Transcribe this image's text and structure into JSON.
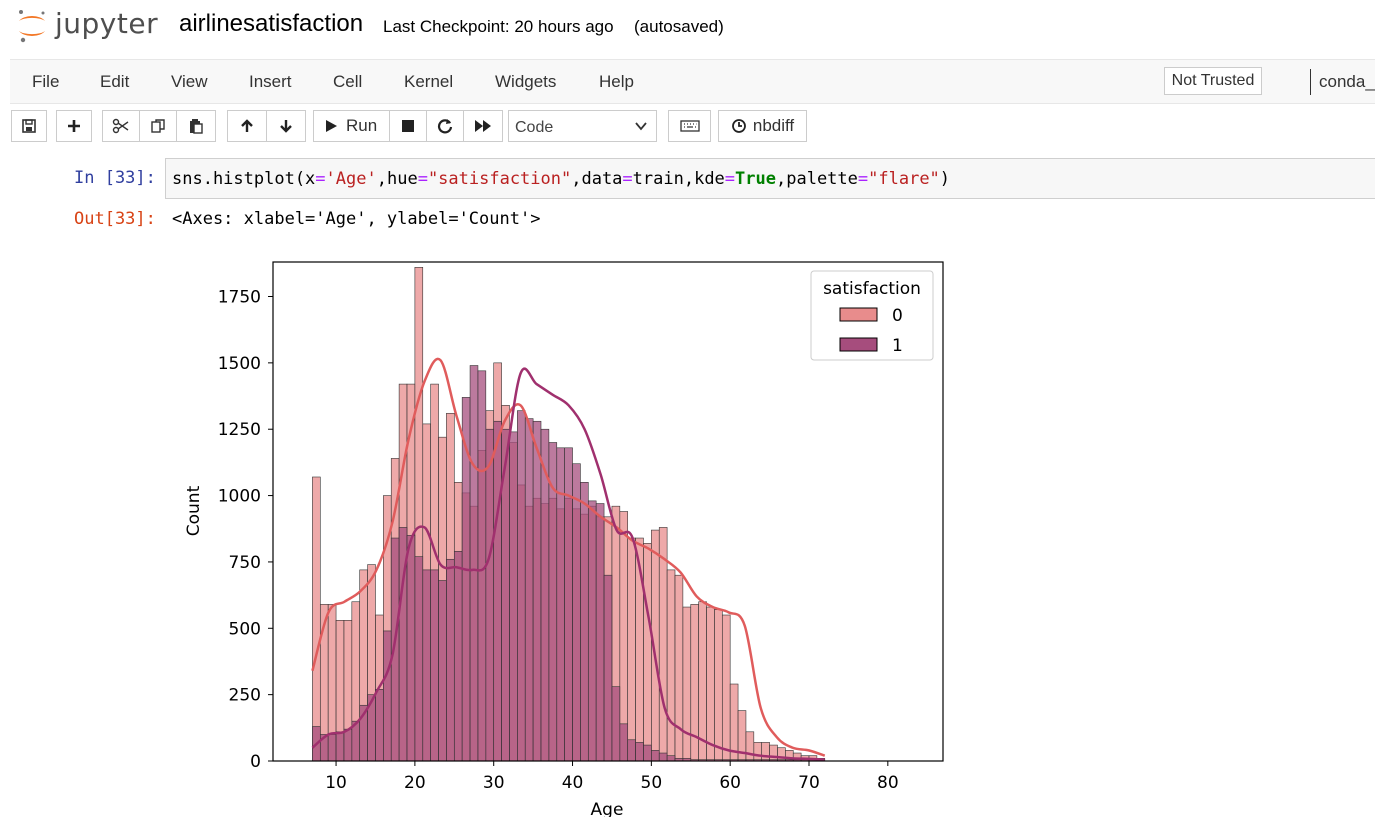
{
  "header": {
    "brand": "jupyter",
    "notebook_name": "airlinesatisfaction",
    "checkpoint": "Last Checkpoint: 20 hours ago",
    "autosave": "(autosaved)"
  },
  "menu": {
    "items": [
      "File",
      "Edit",
      "View",
      "Insert",
      "Cell",
      "Kernel",
      "Widgets",
      "Help"
    ],
    "trust": "Not Trusted",
    "kernel": "conda_"
  },
  "toolbar": {
    "run_label": "Run",
    "cell_type": "Code",
    "nbdiff_label": "nbdiff"
  },
  "cell": {
    "in_prompt": "In [33]:",
    "out_prompt": "Out[33]:",
    "output_text": "<Axes: xlabel='Age', ylabel='Count'>"
  },
  "colors": {
    "hue0": "#e88c8c",
    "hue1": "#a64d7d",
    "kde0": "#e05c5c",
    "kde1": "#a0306e"
  },
  "chart_data": {
    "type": "histogram",
    "xlabel": "Age",
    "ylabel": "Count",
    "xlim": [
      2,
      87
    ],
    "ylim": [
      0,
      1880
    ],
    "xticks": [
      10,
      20,
      30,
      40,
      50,
      60,
      70,
      80
    ],
    "yticks": [
      0,
      250,
      500,
      750,
      1000,
      1250,
      1500,
      1750
    ],
    "legend": {
      "title": "satisfaction",
      "entries": [
        "0",
        "1"
      ],
      "position": "top-right"
    },
    "bins_start": 7,
    "bin_width": 1,
    "series": [
      {
        "name": "0",
        "values": [
          1070,
          590,
          590,
          530,
          530,
          600,
          720,
          740,
          550,
          1000,
          1140,
          1420,
          1420,
          1860,
          1270,
          1420,
          1220,
          1310,
          1050,
          1010,
          960,
          1170,
          1320,
          1500,
          1340,
          1200,
          1040,
          960,
          990,
          970,
          990,
          950,
          990,
          950,
          930,
          960,
          920,
          920,
          960,
          940,
          840,
          840,
          820,
          870,
          880,
          720,
          700,
          580,
          590,
          600,
          580,
          570,
          550,
          290,
          190,
          110,
          70,
          70,
          60,
          50,
          40,
          30,
          20,
          20,
          10
        ],
        "kde": [
          340,
          560,
          600,
          640,
          720,
          900,
          1210,
          1430,
          1510,
          1300,
          1120,
          1110,
          1280,
          1340,
          1180,
          1030,
          1000,
          970,
          920,
          880,
          830,
          800,
          760,
          710,
          620,
          580,
          560,
          510,
          200,
          90,
          50,
          40,
          20
        ]
      },
      {
        "name": "1",
        "values": [
          130,
          100,
          100,
          110,
          120,
          150,
          210,
          250,
          270,
          490,
          840,
          880,
          850,
          770,
          720,
          720,
          680,
          760,
          790,
          1370,
          1490,
          1470,
          1250,
          1280,
          1250,
          1240,
          1320,
          1290,
          1280,
          1250,
          1200,
          1180,
          1180,
          1120,
          1050,
          980,
          970,
          700,
          280,
          140,
          80,
          70,
          60,
          40,
          30,
          20,
          10,
          10,
          5,
          5,
          5,
          5,
          5,
          5,
          5,
          5,
          5,
          5,
          5,
          5,
          5,
          5,
          5,
          5,
          5
        ],
        "kde": [
          50,
          100,
          110,
          160,
          260,
          400,
          800,
          880,
          740,
          730,
          720,
          760,
          1100,
          1460,
          1420,
          1380,
          1340,
          1250,
          1080,
          870,
          840,
          540,
          200,
          120,
          90,
          60,
          40,
          30,
          20,
          15,
          10,
          8,
          5
        ]
      }
    ]
  }
}
